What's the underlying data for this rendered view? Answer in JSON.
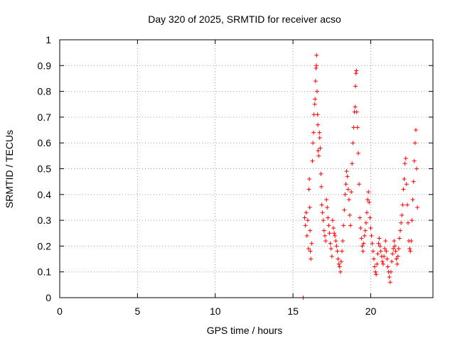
{
  "chart_data": {
    "type": "scatter",
    "title": "Day 320 of 2025, SRMTID for receiver acso",
    "xlabel": "GPS time / hours",
    "ylabel": "SRMTID / TECUs",
    "xlim": [
      0,
      24
    ],
    "ylim": [
      0,
      1
    ],
    "x_ticks": [
      "0",
      "5",
      "10",
      "15",
      "20"
    ],
    "y_ticks": [
      "0",
      "0.1",
      "0.2",
      "0.3",
      "0.4",
      "0.5",
      "0.6",
      "0.7",
      "0.8",
      "0.9",
      "1"
    ],
    "grid": true,
    "marker": "plus",
    "color": "#ff0000",
    "series": [
      {
        "name": "SRMTID",
        "points": [
          [
            15.65,
            0.0
          ],
          [
            15.75,
            0.31
          ],
          [
            15.8,
            0.28
          ],
          [
            15.85,
            0.33
          ],
          [
            15.9,
            0.24
          ],
          [
            15.95,
            0.3
          ],
          [
            16.0,
            0.19
          ],
          [
            16.02,
            0.42
          ],
          [
            16.05,
            0.46
          ],
          [
            16.08,
            0.35
          ],
          [
            16.1,
            0.26
          ],
          [
            16.12,
            0.18
          ],
          [
            16.15,
            0.15
          ],
          [
            16.2,
            0.21
          ],
          [
            16.25,
            0.53
          ],
          [
            16.28,
            0.6
          ],
          [
            16.32,
            0.64
          ],
          [
            16.35,
            0.71
          ],
          [
            16.4,
            0.75
          ],
          [
            16.42,
            0.77
          ],
          [
            16.45,
            0.84
          ],
          [
            16.48,
            0.89
          ],
          [
            16.5,
            0.9
          ],
          [
            16.52,
            0.94
          ],
          [
            16.55,
            0.8
          ],
          [
            16.58,
            0.71
          ],
          [
            16.6,
            0.67
          ],
          [
            16.62,
            0.57
          ],
          [
            16.65,
            0.55
          ],
          [
            16.7,
            0.64
          ],
          [
            16.72,
            0.62
          ],
          [
            16.75,
            0.58
          ],
          [
            16.8,
            0.48
          ],
          [
            16.82,
            0.43
          ],
          [
            16.85,
            0.36
          ],
          [
            16.9,
            0.33
          ],
          [
            16.95,
            0.3
          ],
          [
            17.0,
            0.26
          ],
          [
            17.05,
            0.24
          ],
          [
            17.1,
            0.22
          ],
          [
            17.15,
            0.38
          ],
          [
            17.2,
            0.35
          ],
          [
            17.25,
            0.31
          ],
          [
            17.3,
            0.28
          ],
          [
            17.35,
            0.25
          ],
          [
            17.4,
            0.21
          ],
          [
            17.45,
            0.19
          ],
          [
            17.5,
            0.16
          ],
          [
            17.55,
            0.3
          ],
          [
            17.6,
            0.27
          ],
          [
            17.65,
            0.25
          ],
          [
            17.7,
            0.24
          ],
          [
            17.75,
            0.22
          ],
          [
            17.8,
            0.2
          ],
          [
            17.85,
            0.18
          ],
          [
            17.9,
            0.15
          ],
          [
            17.95,
            0.13
          ],
          [
            18.0,
            0.12
          ],
          [
            18.05,
            0.1
          ],
          [
            18.1,
            0.14
          ],
          [
            18.15,
            0.18
          ],
          [
            18.2,
            0.22
          ],
          [
            18.25,
            0.28
          ],
          [
            18.3,
            0.34
          ],
          [
            18.35,
            0.4
          ],
          [
            18.4,
            0.44
          ],
          [
            18.45,
            0.49
          ],
          [
            18.5,
            0.47
          ],
          [
            18.55,
            0.42
          ],
          [
            18.6,
            0.38
          ],
          [
            18.65,
            0.32
          ],
          [
            18.7,
            0.28
          ],
          [
            18.75,
            0.41
          ],
          [
            18.8,
            0.52
          ],
          [
            18.85,
            0.6
          ],
          [
            18.9,
            0.66
          ],
          [
            18.95,
            0.72
          ],
          [
            19.0,
            0.74
          ],
          [
            19.02,
            0.82
          ],
          [
            19.05,
            0.87
          ],
          [
            19.08,
            0.88
          ],
          [
            19.1,
            0.72
          ],
          [
            19.15,
            0.66
          ],
          [
            19.2,
            0.56
          ],
          [
            19.25,
            0.44
          ],
          [
            19.3,
            0.31
          ],
          [
            19.35,
            0.27
          ],
          [
            19.4,
            0.23
          ],
          [
            19.45,
            0.2
          ],
          [
            19.5,
            0.18
          ],
          [
            19.55,
            0.21
          ],
          [
            19.6,
            0.24
          ],
          [
            19.65,
            0.26
          ],
          [
            19.7,
            0.29
          ],
          [
            19.75,
            0.33
          ],
          [
            19.8,
            0.38
          ],
          [
            19.85,
            0.41
          ],
          [
            19.9,
            0.37
          ],
          [
            19.95,
            0.31
          ],
          [
            20.0,
            0.27
          ],
          [
            20.05,
            0.24
          ],
          [
            20.1,
            0.21
          ],
          [
            20.15,
            0.18
          ],
          [
            20.2,
            0.15
          ],
          [
            20.25,
            0.12
          ],
          [
            20.3,
            0.1
          ],
          [
            20.35,
            0.09
          ],
          [
            20.4,
            0.13
          ],
          [
            20.45,
            0.17
          ],
          [
            20.5,
            0.21
          ],
          [
            20.55,
            0.23
          ],
          [
            20.6,
            0.2
          ],
          [
            20.65,
            0.18
          ],
          [
            20.7,
            0.16
          ],
          [
            20.75,
            0.14
          ],
          [
            20.8,
            0.13
          ],
          [
            20.85,
            0.16
          ],
          [
            20.9,
            0.19
          ],
          [
            20.95,
            0.22
          ],
          [
            21.0,
            0.18
          ],
          [
            21.05,
            0.15
          ],
          [
            21.1,
            0.12
          ],
          [
            21.15,
            0.1
          ],
          [
            21.2,
            0.08
          ],
          [
            21.25,
            0.06
          ],
          [
            21.3,
            0.1
          ],
          [
            21.35,
            0.14
          ],
          [
            21.4,
            0.17
          ],
          [
            21.45,
            0.19
          ],
          [
            21.5,
            0.22
          ],
          [
            21.55,
            0.2
          ],
          [
            21.6,
            0.18
          ],
          [
            21.65,
            0.15
          ],
          [
            21.7,
            0.13
          ],
          [
            21.75,
            0.16
          ],
          [
            21.8,
            0.19
          ],
          [
            21.85,
            0.23
          ],
          [
            21.9,
            0.26
          ],
          [
            21.95,
            0.29
          ],
          [
            22.0,
            0.32
          ],
          [
            22.05,
            0.36
          ],
          [
            22.1,
            0.42
          ],
          [
            22.15,
            0.46
          ],
          [
            22.2,
            0.52
          ],
          [
            22.25,
            0.54
          ],
          [
            22.3,
            0.44
          ],
          [
            22.35,
            0.36
          ],
          [
            22.4,
            0.29
          ],
          [
            22.45,
            0.22
          ],
          [
            22.5,
            0.19
          ],
          [
            22.55,
            0.18
          ],
          [
            22.6,
            0.22
          ],
          [
            22.65,
            0.3
          ],
          [
            22.7,
            0.38
          ],
          [
            22.75,
            0.45
          ],
          [
            22.8,
            0.53
          ],
          [
            22.85,
            0.6
          ],
          [
            22.9,
            0.65
          ],
          [
            22.95,
            0.5
          ],
          [
            23.0,
            0.35
          ]
        ]
      }
    ]
  }
}
